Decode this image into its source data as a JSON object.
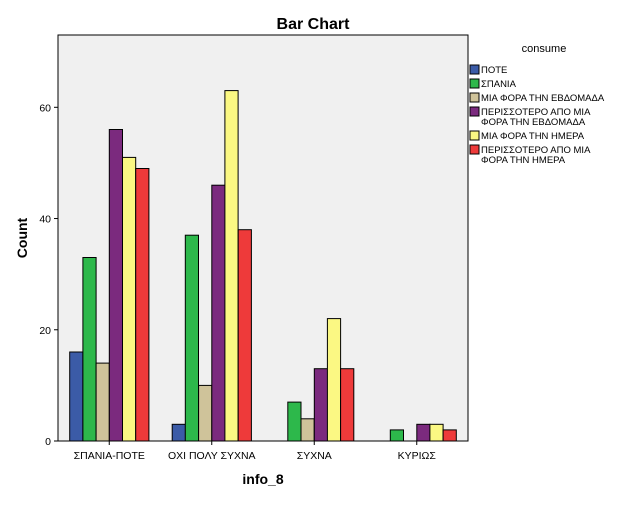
{
  "chart_data": {
    "type": "bar",
    "title": "Bar Chart",
    "xlabel": "info_8",
    "ylabel": "Count",
    "ylim": [
      0,
      73
    ],
    "yticks": [
      0,
      20,
      40,
      60
    ],
    "categories": [
      "ΣΠΑΝΙΑ-ΠΟΤΕ",
      "ΟΧΙ ΠΟΛΥ ΣΥΧΝΑ",
      "ΣΥΧΝΑ",
      "ΚΥΡΙΩΣ"
    ],
    "legend_title": "consume",
    "legend_position": "right",
    "grid": false,
    "series": [
      {
        "name": "ΠΟΤΕ",
        "color": "#3b5ba7",
        "values": [
          16,
          3,
          null,
          null
        ]
      },
      {
        "name": "ΣΠΑΝΙΑ",
        "color": "#2db84b",
        "values": [
          33,
          37,
          7,
          2
        ]
      },
      {
        "name": "ΜΙΑ ΦΟΡΑ ΤΗΝ ΕΒΔΟΜΑΔΑ",
        "color": "#cfc39a",
        "values": [
          14,
          10,
          4,
          null
        ]
      },
      {
        "name": "ΠΕΡΙΣΣΟΤΕΡΟ ΑΠΟ ΜΙΑ ΦΟΡΑ ΤΗΝ ΕΒΔΟΜΑΔΑ",
        "color": "#7b2a7e",
        "values": [
          56,
          46,
          13,
          3
        ]
      },
      {
        "name": "ΜΙΑ ΦΟΡΑ ΤΗΝ ΗΜΕΡΑ",
        "color": "#fbf883",
        "values": [
          51,
          63,
          22,
          3
        ]
      },
      {
        "name": "ΠΕΡΙΣΣΟΤΕΡΟ ΑΠΟ ΜΙΑ ΦΟΡΑ ΤΗΝ ΗΜΕΡΑ",
        "color": "#ee3a3a",
        "values": [
          49,
          38,
          13,
          2
        ]
      }
    ]
  }
}
